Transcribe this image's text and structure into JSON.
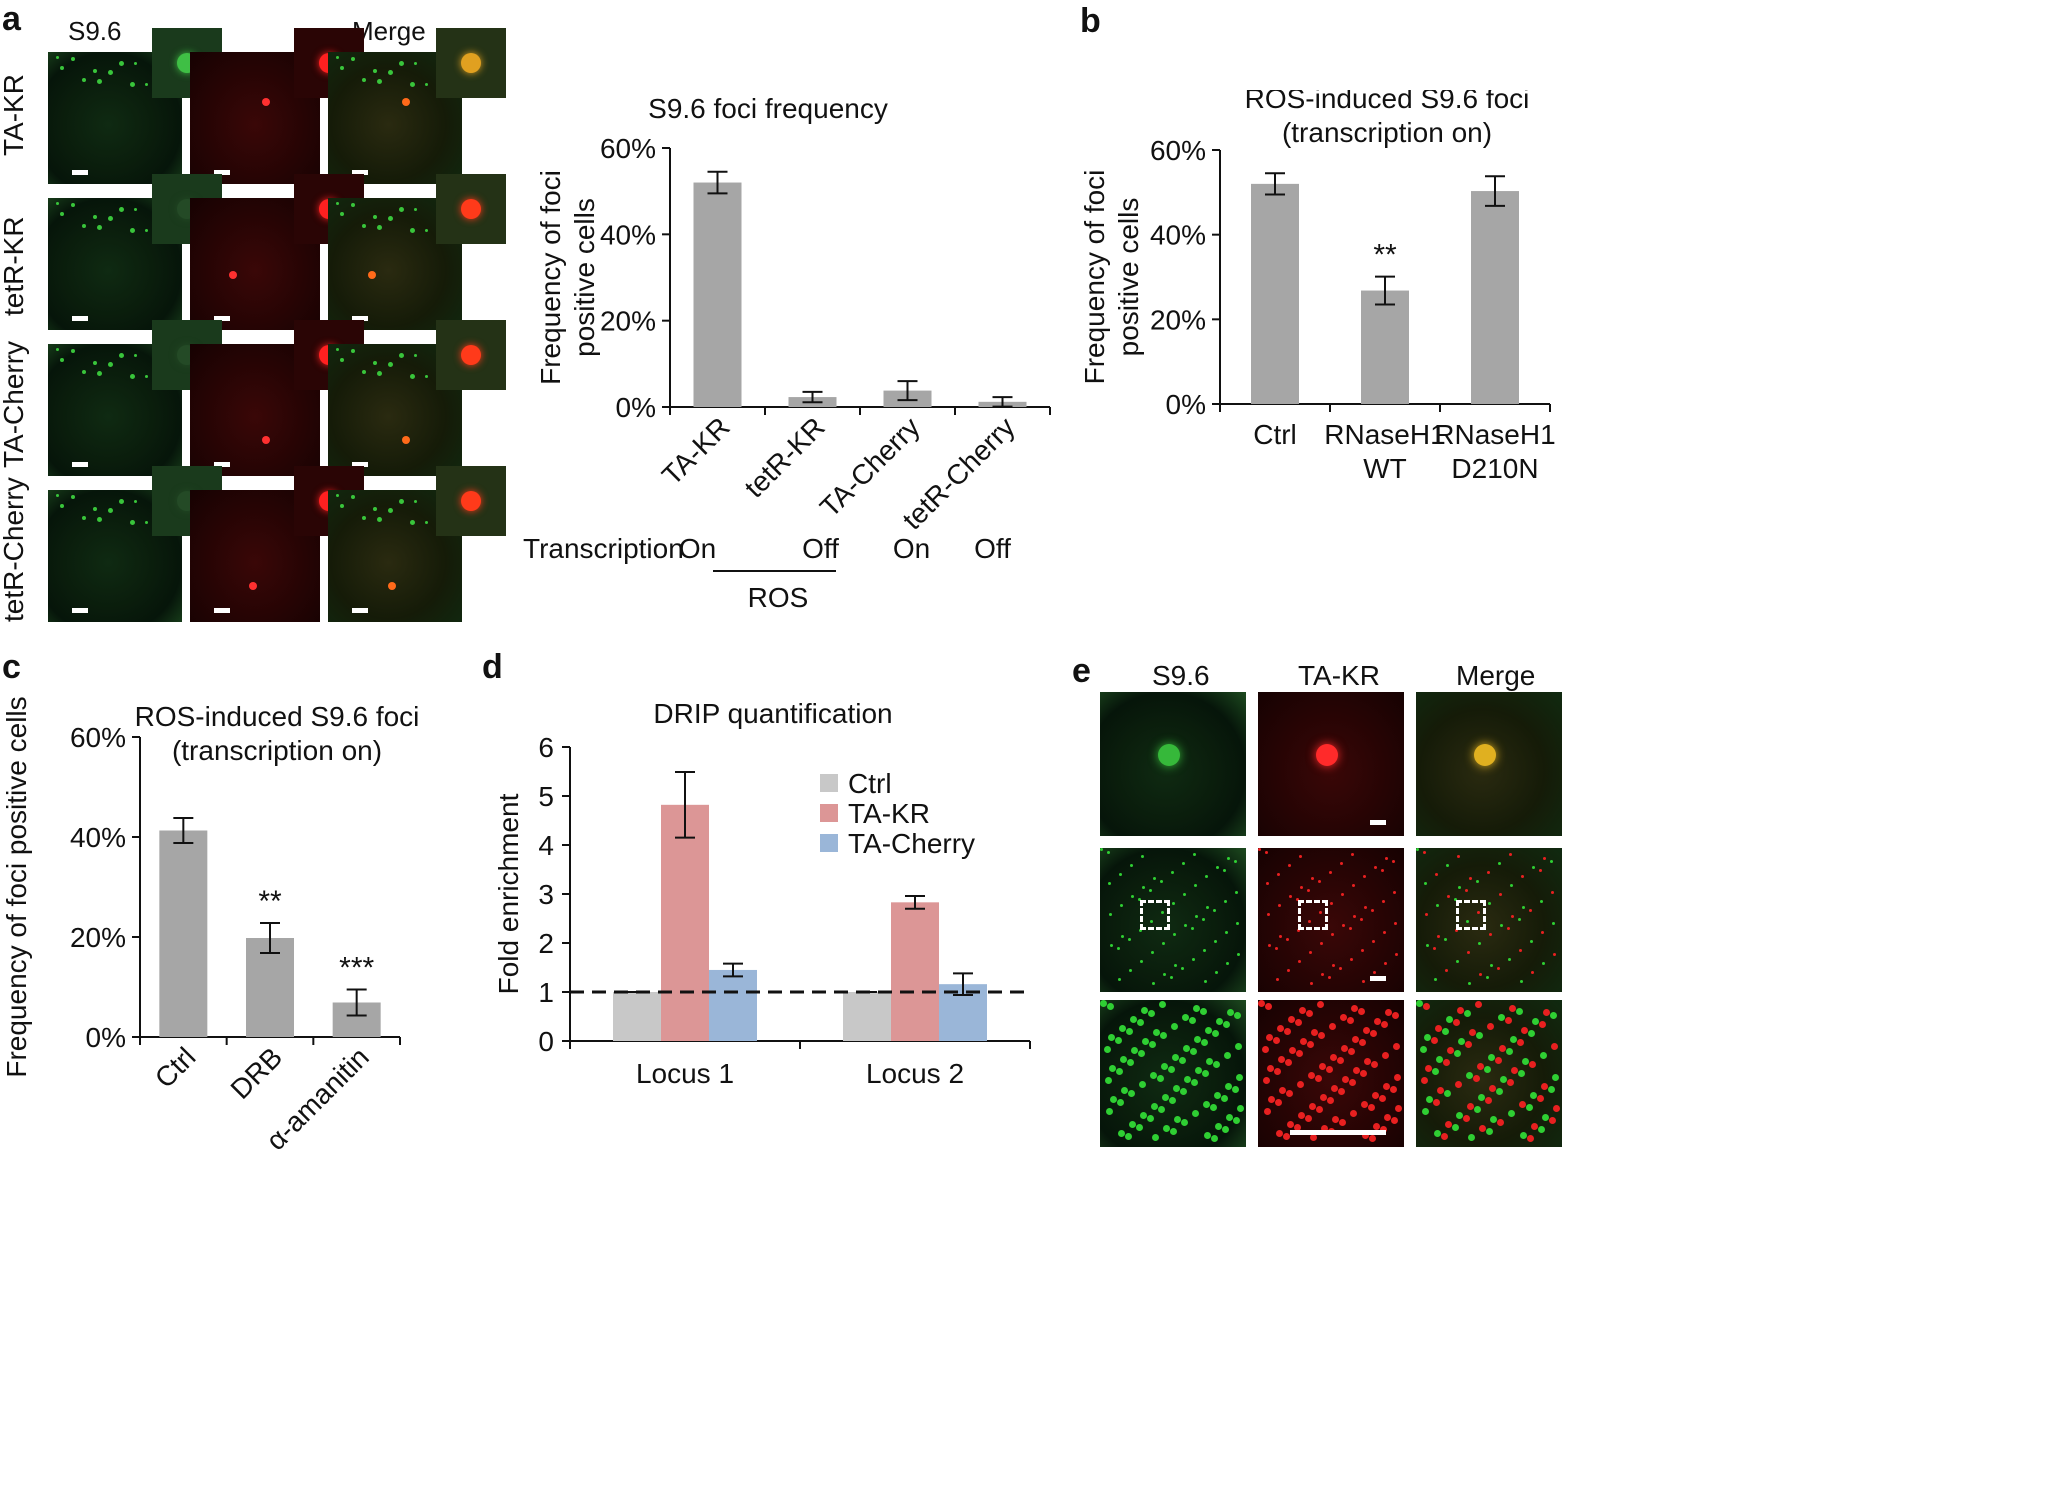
{
  "panel_labels": {
    "a": "a",
    "b": "b",
    "c": "c",
    "d": "d",
    "e": "e"
  },
  "panel_a": {
    "column_headers": {
      "s96": "S9.6",
      "merge": "Merge"
    },
    "row_labels": [
      "TA-KR",
      "tetR-KR",
      "TA-Cherry",
      "tetR-Cherry"
    ]
  },
  "panel_e": {
    "column_headers": [
      "S9.6",
      "TA-KR",
      "Merge"
    ]
  },
  "chart_data": [
    {
      "id": "a-chart",
      "type": "bar",
      "title": "S9.6 foci frequency",
      "ylabel": "Frequency of foci positive cells",
      "ylabel_lines": [
        "Frequency of foci",
        "positive cells"
      ],
      "categories": [
        "TA-KR",
        "tetR-KR",
        "TA-Cherry",
        "tetR-Cherry"
      ],
      "values": [
        52,
        2.3,
        3.8,
        1.2
      ],
      "errors": [
        2.5,
        1.2,
        2.2,
        1.1
      ],
      "ylim": [
        0,
        60
      ],
      "yticks": [
        "0%",
        "20%",
        "40%",
        "60%"
      ],
      "ytick_values": [
        0,
        20,
        40,
        60
      ],
      "color": "#a6a6a6",
      "transcription": {
        "label": "Transcription",
        "values": [
          "On",
          "Off",
          "On",
          "Off"
        ]
      },
      "group_label": "ROS"
    },
    {
      "id": "b-chart",
      "type": "bar",
      "title": "ROS-induced S9.6 foci (transcription on)",
      "title_lines": [
        "ROS-induced S9.6 foci",
        "(transcription on)"
      ],
      "ylabel": "Frequency of foci positive cells",
      "ylabel_lines": [
        "Frequency of foci",
        "positive cells"
      ],
      "categories": [
        "Ctrl",
        "RNaseH1 WT",
        "RNaseH1 D210N"
      ],
      "category_lines": [
        [
          "Ctrl"
        ],
        [
          "RNaseH1",
          "WT"
        ],
        [
          "RNaseH1",
          "D210N"
        ]
      ],
      "values": [
        52,
        26.8,
        50.3
      ],
      "errors": [
        2.5,
        3.3,
        3.5
      ],
      "annotations": [
        "",
        "**",
        ""
      ],
      "ylim": [
        0,
        60
      ],
      "yticks": [
        "0%",
        "20%",
        "40%",
        "60%"
      ],
      "ytick_values": [
        0,
        20,
        40,
        60
      ],
      "color": "#a6a6a6"
    },
    {
      "id": "c-chart",
      "type": "bar",
      "title": "ROS-induced S9.6 foci (transcription on)",
      "title_lines": [
        "ROS-induced S9.6 foci",
        "(transcription on)"
      ],
      "ylabel": "Frequency of foci positive cells",
      "categories": [
        "Ctrl",
        "DRB",
        "α-amanitin"
      ],
      "values": [
        41.3,
        19.8,
        6.9
      ],
      "errors": [
        2.5,
        3.0,
        2.6
      ],
      "annotations": [
        "",
        "**",
        "***"
      ],
      "ylim": [
        0,
        60
      ],
      "yticks": [
        "0%",
        "20%",
        "40%",
        "60%"
      ],
      "ytick_values": [
        0,
        20,
        40,
        60
      ],
      "color": "#a6a6a6"
    },
    {
      "id": "d-chart",
      "type": "bar",
      "title": "DRIP quantification",
      "ylabel": "Fold enrichment",
      "categories": [
        "Locus 1",
        "Locus 2"
      ],
      "series": [
        {
          "name": "Ctrl",
          "values": [
            1.0,
            1.0
          ],
          "errors": [
            0.0,
            0.0
          ],
          "color": "#c8c8c8"
        },
        {
          "name": "TA-KR",
          "values": [
            4.82,
            2.83
          ],
          "errors": [
            0.67,
            0.13
          ],
          "color": "#dc9696"
        },
        {
          "name": "TA-Cherry",
          "values": [
            1.45,
            1.16
          ],
          "errors": [
            0.13,
            0.22
          ],
          "color": "#9ab6d8"
        }
      ],
      "ylim": [
        0,
        6
      ],
      "yticks": [
        "0",
        "1",
        "2",
        "3",
        "4",
        "5",
        "6"
      ],
      "ytick_values": [
        0,
        1,
        2,
        3,
        4,
        5,
        6
      ],
      "reference_line": 1
    }
  ]
}
